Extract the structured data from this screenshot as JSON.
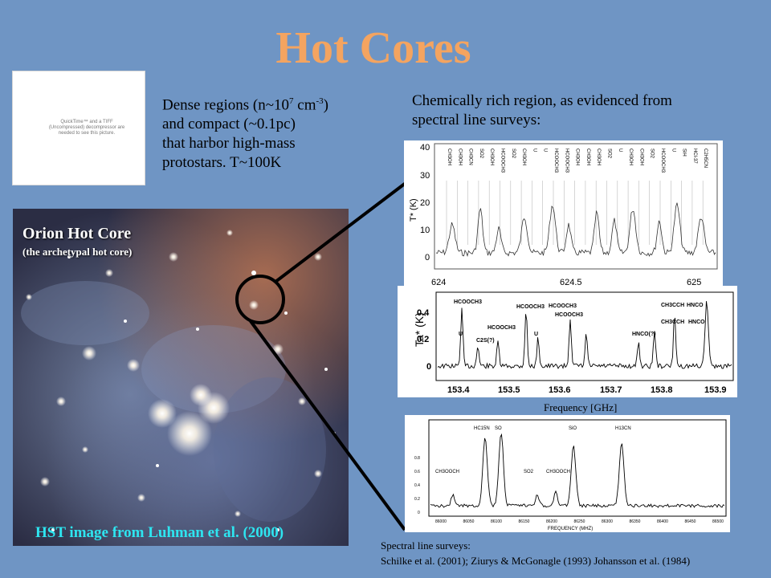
{
  "slide": {
    "title": "Hot Cores",
    "quicktime_notice": "QuickTime™ and a TIFF (Uncompressed) decompressor are needed to see this picture.",
    "left_text": {
      "line1_pre": "Dense regions (n~10",
      "line1_exp1": "7",
      "line1_mid": " cm",
      "line1_exp2": "-3",
      "line1_post": ")",
      "line2": " and compact (~0.1pc)",
      "line3": "that harbor high-mass",
      "line4": "protostars. T~100K"
    },
    "right_text": {
      "line1": "Chemically rich region, as evidenced from",
      "line2": " spectral line surveys:"
    },
    "orion": {
      "title": "Orion Hot Core",
      "subtitle": "(the archetypal hot core)",
      "credit": "HST image from Luhman et al. (2000)"
    },
    "spectrum1": {
      "ylabel": "T* (K)",
      "yticks": [
        "40",
        "30",
        "20",
        "10",
        "0"
      ],
      "xticks": [
        "624",
        "624.5",
        "625"
      ],
      "lines": [
        "CH3OH",
        "CH3OH",
        "CH3CN",
        "SO2",
        "CH3OH",
        "HCOOCH3",
        "SO2",
        "CH3OH",
        "U",
        "U",
        "HCOOCH3",
        "HCOOCH3",
        "CH3OH",
        "CH3OH",
        "CH3OH",
        "SO2",
        "U",
        "CH3OH",
        "CH3OH",
        "SO2",
        "HCOOCH3",
        "U",
        "SiH",
        "HCl-37",
        "C2H5CN"
      ]
    },
    "spectrum2": {
      "ylabel": "Ta* (K)",
      "yticks": [
        "0.4",
        "0.2",
        "0"
      ],
      "xticks": [
        "153.4",
        "153.5",
        "153.6",
        "153.7",
        "153.8",
        "153.9"
      ],
      "labels": [
        "HCOOCH3",
        "U",
        "C2S(?)",
        "HCOOCH3",
        "U",
        "HCOOCH3",
        "HCOOCH3",
        "HCOOCH3",
        "HNCO(?)",
        "CH3CCH",
        "HNCO",
        "CH3CCH",
        "HNCO"
      ],
      "xlabel": "Frequency [GHz]"
    },
    "spectrum3": {
      "xlabel": "FREQUENCY (MHZ)",
      "yticks": [
        "0.8",
        "0.6",
        "0.4",
        "0.2",
        "0"
      ],
      "xticks": [
        "86000",
        "86050",
        "86100",
        "86150",
        "86200",
        "86250",
        "86300",
        "86350",
        "86400",
        "86450",
        "86500"
      ],
      "labels": [
        "HC15N",
        "SO",
        "CH3OOCH",
        "SO2",
        "CH3OOCH",
        "SiO",
        "H13CN"
      ]
    },
    "references": {
      "line1": "Spectral line surveys:",
      "line2": "Schilke et al. (2001); Ziurys & McGonagle (1993) Johansson et al. (1984)"
    }
  }
}
